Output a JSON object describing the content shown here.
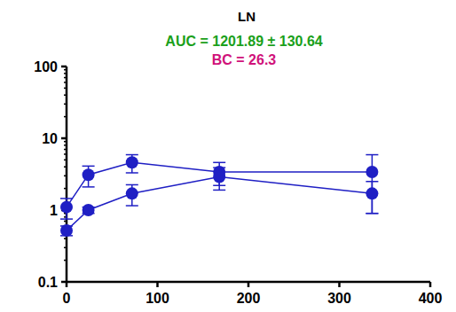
{
  "chart_data": {
    "type": "line",
    "title": "LN",
    "annotations": [
      "AUC = 1201.89 ± 130.64",
      "BC = 26.3"
    ],
    "log": "y",
    "marker": "circle",
    "series": [
      {
        "color": "#1f1fc4",
        "x": [
          0,
          24,
          72,
          168,
          336
        ],
        "values": [
          1.1,
          3.1,
          4.6,
          3.4,
          3.4
        ],
        "errors": [
          0.35,
          1.0,
          1.3,
          1.2,
          2.5
        ]
      },
      {
        "color": "#1f1fc4",
        "x": [
          0,
          24,
          72,
          168,
          336
        ],
        "values": [
          0.52,
          1.0,
          1.7,
          2.9,
          1.7
        ],
        "errors": [
          0.08,
          0.1,
          0.55,
          1.0,
          0.8
        ]
      }
    ],
    "xlim": [
      0,
      400
    ],
    "xticks": [
      0,
      100,
      200,
      300,
      400
    ],
    "ylim": [
      0.1,
      100
    ],
    "yticks": [
      0.1,
      1,
      10,
      100
    ]
  }
}
